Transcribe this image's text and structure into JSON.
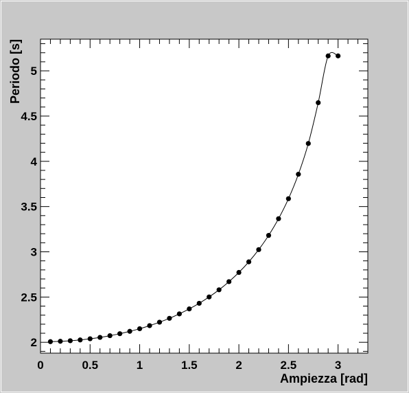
{
  "chart_data": {
    "type": "scatter",
    "title": "",
    "xlabel": "Ampiezza [rad]",
    "ylabel": "Periodo [s]",
    "xlim": [
      0,
      3.3
    ],
    "ylim": [
      1.88,
      5.35
    ],
    "grid": false,
    "legend": "none",
    "x_ticks": [
      {
        "value": 0,
        "label": "0"
      },
      {
        "value": 0.5,
        "label": "0.5"
      },
      {
        "value": 1,
        "label": "1"
      },
      {
        "value": 1.5,
        "label": "1.5"
      },
      {
        "value": 2,
        "label": "2"
      },
      {
        "value": 2.5,
        "label": "2.5"
      },
      {
        "value": 3,
        "label": "3"
      }
    ],
    "y_ticks": [
      {
        "value": 2,
        "label": "2"
      },
      {
        "value": 2.5,
        "label": "2.5"
      },
      {
        "value": 3,
        "label": "3"
      },
      {
        "value": 3.5,
        "label": "3.5"
      },
      {
        "value": 4,
        "label": "4"
      },
      {
        "value": 4.5,
        "label": "4.5"
      },
      {
        "value": 5,
        "label": "5"
      }
    ],
    "x_minor_step": 0.1,
    "y_minor_step": 0.1,
    "series": [
      {
        "marker_color": "#000000",
        "line_color": "#000000",
        "x": [
          0.1,
          0.2,
          0.3,
          0.4,
          0.5,
          0.6,
          0.7,
          0.8,
          0.9,
          1.0,
          1.1,
          1.2,
          1.3,
          1.4,
          1.5,
          1.6,
          1.7,
          1.8,
          1.9,
          2.0,
          2.1,
          2.2,
          2.3,
          2.4,
          2.5,
          2.6,
          2.7,
          2.8,
          2.9,
          3.0
        ],
        "y": [
          2.007,
          2.011,
          2.017,
          2.026,
          2.039,
          2.054,
          2.073,
          2.095,
          2.121,
          2.15,
          2.184,
          2.222,
          2.265,
          2.314,
          2.369,
          2.431,
          2.501,
          2.58,
          2.67,
          2.772,
          2.889,
          3.024,
          3.181,
          3.366,
          3.587,
          3.857,
          4.197,
          4.648,
          5.165,
          5.165
        ]
      }
    ]
  }
}
